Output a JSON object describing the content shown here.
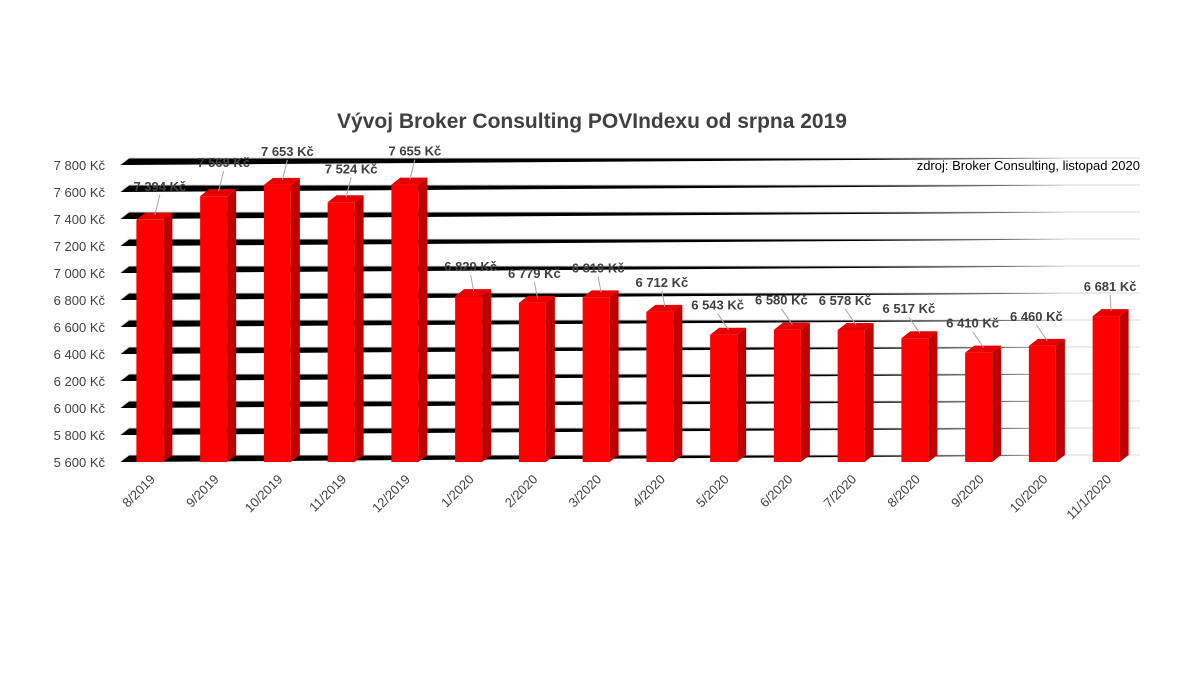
{
  "chart_data": {
    "type": "bar",
    "title": "Vývoj Broker Consulting POVIndexu od srpna 2019",
    "source_note": "zdroj: Broker Consulting, listopad 2020",
    "categories": [
      "8/2019",
      "9/2019",
      "10/2019",
      "11/2019",
      "12/2019",
      "1/2020",
      "2/2020",
      "3/2020",
      "4/2020",
      "5/2020",
      "6/2020",
      "7/2020",
      "8/2020",
      "9/2020",
      "10/2020",
      "11/1/2020"
    ],
    "values": [
      7394,
      7569,
      7653,
      7524,
      7655,
      6829,
      6779,
      6819,
      6712,
      6543,
      6580,
      6578,
      6517,
      6410,
      6460,
      6681
    ],
    "data_labels": [
      "7 394 Kč",
      "7 569 Kč",
      "7 653 Kč",
      "7 524 Kč",
      "7 655 Kč",
      "6 829 Kč",
      "6 779 Kč",
      "6 819 Kč",
      "6 712 Kč",
      "6 543 Kč",
      "6 580 Kč",
      "6 578 Kč",
      "6 517 Kč",
      "6 410 Kč",
      "6 460 Kč",
      "6 681 Kč"
    ],
    "y_ticks": [
      5600,
      5800,
      6000,
      6200,
      6400,
      6600,
      6800,
      7000,
      7200,
      7400,
      7600,
      7800
    ],
    "y_tick_labels": [
      "5 600 Kč",
      "5 800 Kč",
      "6 000 Kč",
      "6 200 Kč",
      "6 400 Kč",
      "6 600 Kč",
      "6 800 Kč",
      "7 000 Kč",
      "7 200 Kč",
      "7 400 Kč",
      "7 600 Kč",
      "7 800 Kč"
    ],
    "ylim": [
      5600,
      7800
    ],
    "grid": true,
    "legend": "none",
    "bar_color": "#ff0000",
    "bar_side_color": "#c00000",
    "bar_top_color": "#e60000"
  }
}
